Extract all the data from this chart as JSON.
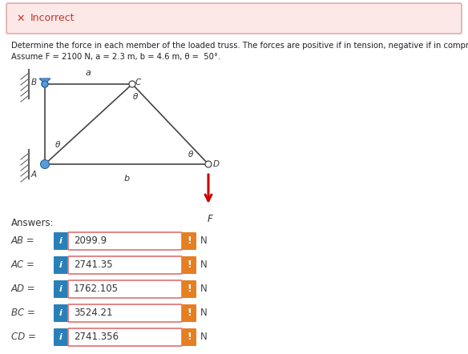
{
  "bg_color": "#ffffff",
  "page_bg": "#f0f0f0",
  "incorrect_box": {
    "bg_color": "#fde8e8",
    "border_color": "#d9a0a0",
    "text": "Incorrect",
    "text_color": "#c0392b",
    "x_color": "#c0392b"
  },
  "description_line1": "Determine the force in each member of the loaded truss. The forces are positive if in tension, negative if in compression.",
  "description_line2": "Assume F = 2100 N, a = 2.3 m, b = 4.6 m, θ =  50°.",
  "answers_label": "Answers:",
  "rows": [
    {
      "label": "AB =",
      "value": "2099.9"
    },
    {
      "label": "AC =",
      "value": "2741.35"
    },
    {
      "label": "AD =",
      "value": "1762.105"
    },
    {
      "label": "BC =",
      "value": "3524.21"
    },
    {
      "label": "CD =",
      "value": "2741.356"
    }
  ],
  "unit": "N",
  "info_btn_color": "#2980b9",
  "warn_btn_color": "#e67e22",
  "input_bg": "#ffffff",
  "input_border": "#e07070",
  "truss": {
    "A": [
      0.095,
      0.535
    ],
    "B": [
      0.095,
      0.735
    ],
    "C": [
      0.265,
      0.735
    ],
    "D": [
      0.435,
      0.535
    ],
    "theta_label": "θ",
    "a_label": "a",
    "b_label": "b",
    "F_label": "F"
  }
}
